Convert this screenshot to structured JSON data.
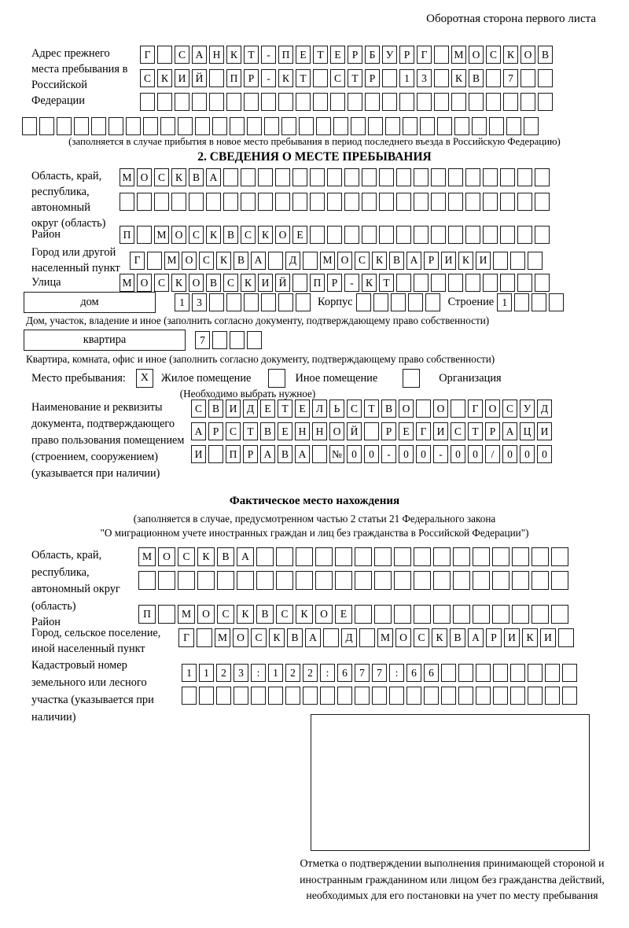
{
  "header": {
    "note": "Оборотная сторона первого листа"
  },
  "prev_address": {
    "label": "Адрес прежнего места пребывания в Российской Федерации",
    "row1": "Г_САНКТ-ПЕТЕРБУРГ_МОСКОВ",
    "row2": "СКИЙ_ПР-КТ_СТР_13_КВ_7__",
    "row3": "________________________",
    "row4": "______________________________",
    "note": "(заполняется в случае прибытия в новое место пребывания в период последнего въезда в Российскую Федерацию)"
  },
  "section2": {
    "title": "2. СВЕДЕНИЯ О МЕСТЕ ПРЕБЫВАНИЯ",
    "region": {
      "label": "Область, край, республика, автономный округ (область)",
      "row1": "МОСКВА___________________",
      "row2": "_________________________"
    },
    "district": {
      "label": "Район",
      "row": "П_МОСКВСКОЕ______________"
    },
    "city": {
      "label": "Город или другой населенный пункт",
      "row": "Г_МОСКВА_Д_МОСКВАРИКИ___"
    },
    "street": {
      "label": "Улица",
      "row": "МОСКОВСКИЙ_ПР-КТ_________"
    },
    "house": {
      "box_label": "дом",
      "cells": "13______",
      "korpus_label": "Корпус",
      "korpus_cells": "_____",
      "stroenie_label": "Строение",
      "stroenie_cells": "1___",
      "note": "Дом, участок, владение и иное (заполнить согласно документу, подтверждающему право собственности)"
    },
    "apartment": {
      "box_label": "квартира",
      "cells": "7___",
      "note": "Квартира, комната, офис и иное (заполнить согласно документу, подтверждающему право собственности)"
    },
    "stay_type": {
      "label": "Место пребывания:",
      "options": [
        {
          "label": "Жилое помещение",
          "mark": "X"
        },
        {
          "label": "Иное помещение",
          "mark": ""
        },
        {
          "label": "Организация",
          "mark": ""
        }
      ],
      "note": "(Необходимо выбрать нужное)"
    },
    "document": {
      "label": "Наименование и реквизиты документа, подтверждающего право пользования помещением (строением, сооружением) (указывается при наличии)",
      "row1": "СВИДЕТЕЛЬСТВО_О_ГОСУД",
      "row2": "АРСТВЕННОЙ_РЕГИСТРАЦИ",
      "row3": "И_ПРАВА_№00-00-00/000"
    }
  },
  "factual": {
    "title": "Фактическое место нахождения",
    "note1": "(заполняется в случае, предусмотренном частью 2 статьи 21 Федерального закона",
    "note2": "\"О миграционном учете иностранных граждан и лиц без гражданства в Российской Федерации\")",
    "region": {
      "label": "Область, край, республика, автономный округ (область)",
      "row1": "МОСКВА________________",
      "row2": "______________________"
    },
    "district": {
      "label": "Район",
      "row": "П_МОСКВСКОЕ___________"
    },
    "city": {
      "label": "Город, сельское поселение, иной населенный пункт",
      "row": "Г_МОСКВА_Д_МОСКВАРИКИ_"
    },
    "cadastre": {
      "label": "Кадастровый номер земельного или лесного участка (указывается при наличии)",
      "row1": "1123:122:677:66________",
      "row2": "_______________________"
    },
    "stamp_note": "Отметка о подтверждении выполнения принимающей стороной и иностранным гражданином или лицом без гражданства действий, необходимых для его постановки на учет по месту пребывания"
  }
}
